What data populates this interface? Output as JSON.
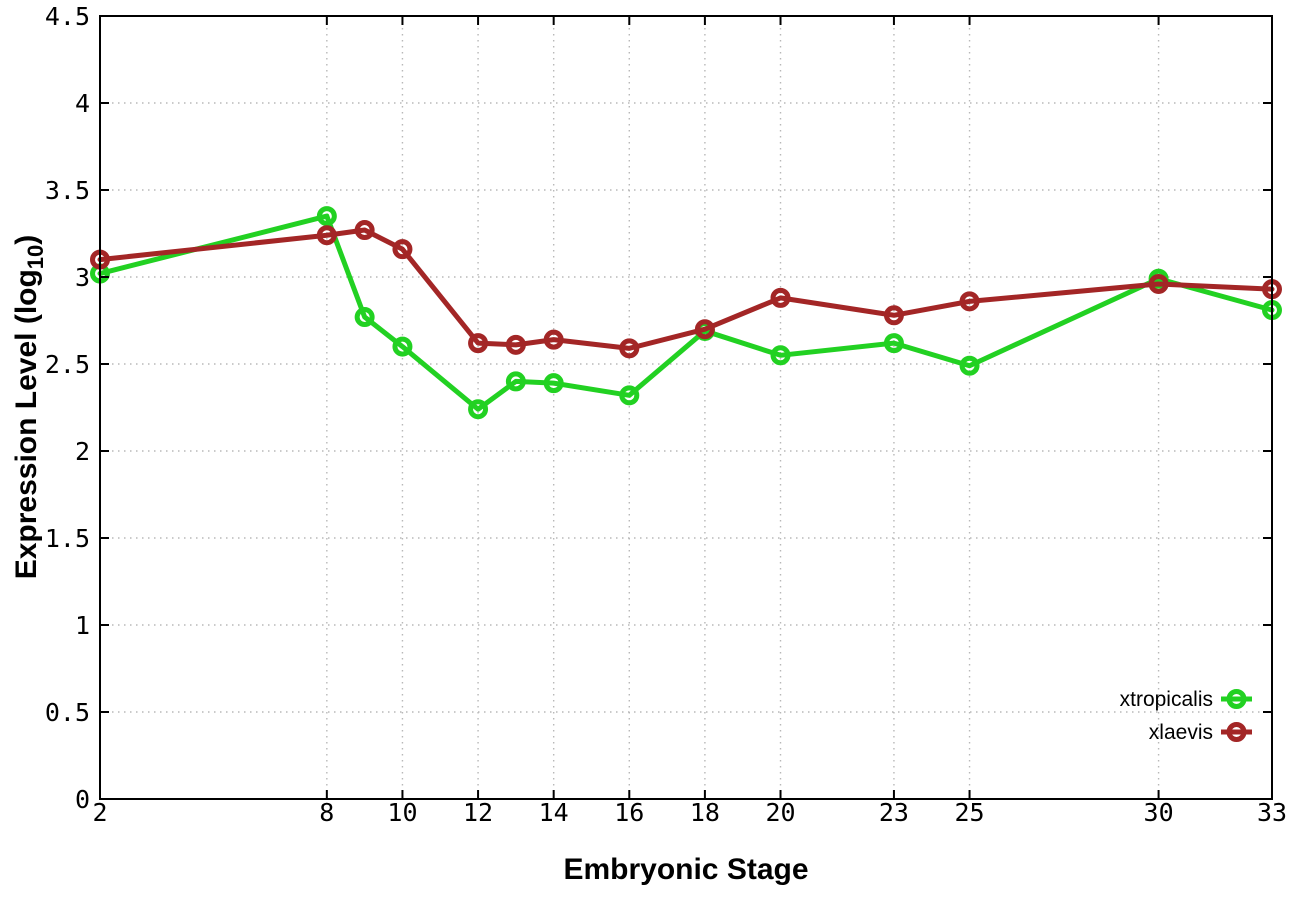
{
  "page": {
    "background": "#ffffff",
    "axis_color": "#000000",
    "grid_color": "#b8b8b8"
  },
  "chart_data": {
    "type": "line",
    "title": "",
    "xlabel": "Embryonic Stage",
    "ylabel": "Expression Level (log10)",
    "ylabel_parts": {
      "pre": "Expression Level (log",
      "sub": "10",
      "post": ")"
    },
    "x": [
      2,
      8,
      9,
      10,
      12,
      13,
      14,
      16,
      18,
      20,
      23,
      25,
      30,
      33
    ],
    "series": [
      {
        "name": "xtropicalis",
        "color": "#22d122",
        "marker": "open-circle",
        "values": [
          3.02,
          3.35,
          2.77,
          2.6,
          2.24,
          2.4,
          2.39,
          2.32,
          2.69,
          2.55,
          2.62,
          2.49,
          2.99,
          2.81
        ]
      },
      {
        "name": "xlaevis",
        "color": "#a32626",
        "marker": "open-circle",
        "values": [
          3.1,
          3.24,
          3.27,
          3.16,
          2.62,
          2.61,
          2.64,
          2.59,
          2.7,
          2.88,
          2.78,
          2.86,
          2.96,
          2.93
        ]
      }
    ],
    "xlim": [
      2,
      33
    ],
    "ylim": [
      0,
      4.5
    ],
    "xticks": [
      2,
      8,
      10,
      12,
      14,
      16,
      18,
      20,
      23,
      25,
      30,
      33
    ],
    "yticks": [
      0,
      0.5,
      1,
      1.5,
      2,
      2.5,
      3,
      3.5,
      4,
      4.5
    ],
    "grid": true,
    "grid_style": "dotted",
    "legend_position": "inside-bottom-right",
    "legend_entries": [
      "xtropicalis",
      "xlaevis"
    ]
  }
}
